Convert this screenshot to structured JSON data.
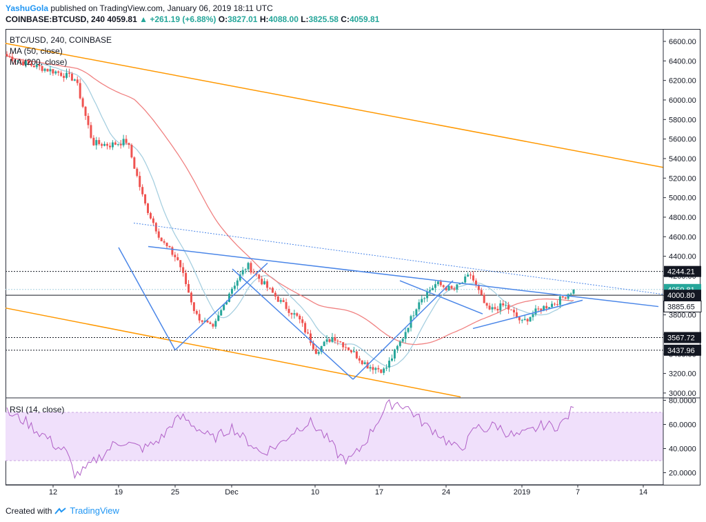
{
  "header": {
    "author": "YashuGola",
    "published_text": "published on TradingView.com, January 06, 2019 18:11 UTC",
    "symbol": "COINBASE:BTCUSD, 240",
    "last": "4059.81",
    "change": "▲ +261.19 (+6.88%)",
    "o_label": "O:",
    "o_value": "3827.01",
    "h_label": "H:",
    "h_value": "4088.00",
    "l_label": "L:",
    "l_value": "3825.58",
    "c_label": "C:",
    "c_value": "4059.81"
  },
  "legend": {
    "title": "BTC/USD, 240, COINBASE",
    "ma50": "MA (50, close)",
    "ma200": "MA (200, close)",
    "rsi": "RSI (14, close)"
  },
  "footer": {
    "created_with": "Created with",
    "brand": "TradingView"
  },
  "colors": {
    "up": "#26a69a",
    "down": "#ef5350",
    "ma50": "#a6cfe0",
    "ma200": "#f08080",
    "trend": "#4a86e8",
    "channel": "#ff9800",
    "rsi": "#b05fc7",
    "rsi_band": "#f0e0fb"
  },
  "chart_data": [
    {
      "type": "candlestick",
      "title": "BTC/USD, 240, COINBASE",
      "x_ticks": [
        "12",
        "19",
        "25",
        "Dec",
        "10",
        "17",
        "24",
        "2019",
        "7",
        "14"
      ],
      "y_ticks": [
        "6600.00",
        "6400.00",
        "6200.00",
        "6000.00",
        "5800.00",
        "5600.00",
        "5400.00",
        "5200.00",
        "5000.00",
        "4800.00",
        "4600.00",
        "4400.00",
        "4200.00",
        "4000.00",
        "3800.00",
        "3600.00",
        "3400.00",
        "3200.00",
        "3000.00"
      ],
      "ylim": [
        2950,
        6720
      ],
      "price_labels": [
        {
          "text": "4244.21",
          "value": 4244.21,
          "style": "dark"
        },
        {
          "text": "4059.81",
          "value": 4059.81,
          "style": "up"
        },
        {
          "text": "01:48:58",
          "value": 3966,
          "style": "up"
        },
        {
          "text": "4000.80",
          "value": 4000.8,
          "style": "dark"
        },
        {
          "text": "3885.65",
          "value": 3885.65,
          "style": "light"
        },
        {
          "text": "3567.72",
          "value": 3567.72,
          "style": "dark"
        },
        {
          "text": "3437.96",
          "value": 3437.96,
          "style": "dark"
        }
      ],
      "horizontal_levels": [
        4244.21,
        4059.81,
        4000.8,
        3567.72,
        3437.96
      ],
      "approx_close_path": [
        6450,
        6380,
        6330,
        6280,
        6210,
        5560,
        5540,
        5580,
        4950,
        4560,
        4350,
        3800,
        3650,
        4050,
        4310,
        4110,
        3920,
        3760,
        3430,
        3580,
        3440,
        3280,
        3230,
        3550,
        3950,
        4120,
        4050,
        4210,
        3840,
        3900,
        3720,
        3860,
        3930,
        4059.81
      ],
      "series": [
        {
          "name": "MA (50, close)"
        },
        {
          "name": "MA (200, close)"
        }
      ]
    },
    {
      "type": "line",
      "title": "RSI (14, close)",
      "y_ticks": [
        "80.0000",
        "60.0000",
        "40.0000",
        "20.0000"
      ],
      "ylim": [
        10,
        82
      ],
      "band": [
        30,
        70
      ],
      "approx_values": [
        70,
        66,
        62,
        55,
        50,
        42,
        38,
        18,
        22,
        30,
        36,
        44,
        46,
        42,
        40,
        44,
        50,
        62,
        66,
        60,
        54,
        48,
        52,
        58,
        50,
        44,
        36,
        40,
        44,
        52,
        58,
        62,
        55,
        46,
        34,
        30,
        38,
        50,
        64,
        76,
        78,
        74,
        66,
        58,
        54,
        46,
        40,
        44,
        58,
        56,
        60,
        54,
        50,
        52,
        56,
        60,
        58,
        62,
        74
      ]
    }
  ]
}
